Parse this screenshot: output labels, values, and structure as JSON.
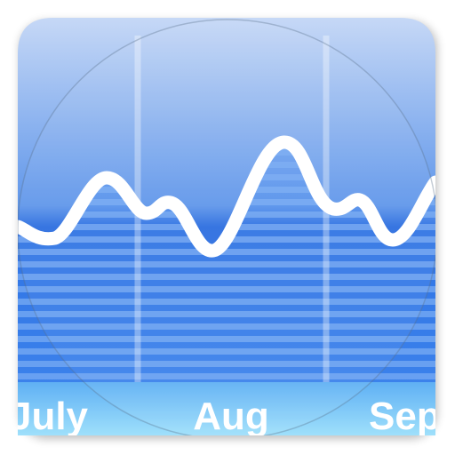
{
  "labels": [
    "July",
    "Aug",
    "Sep"
  ]
}
